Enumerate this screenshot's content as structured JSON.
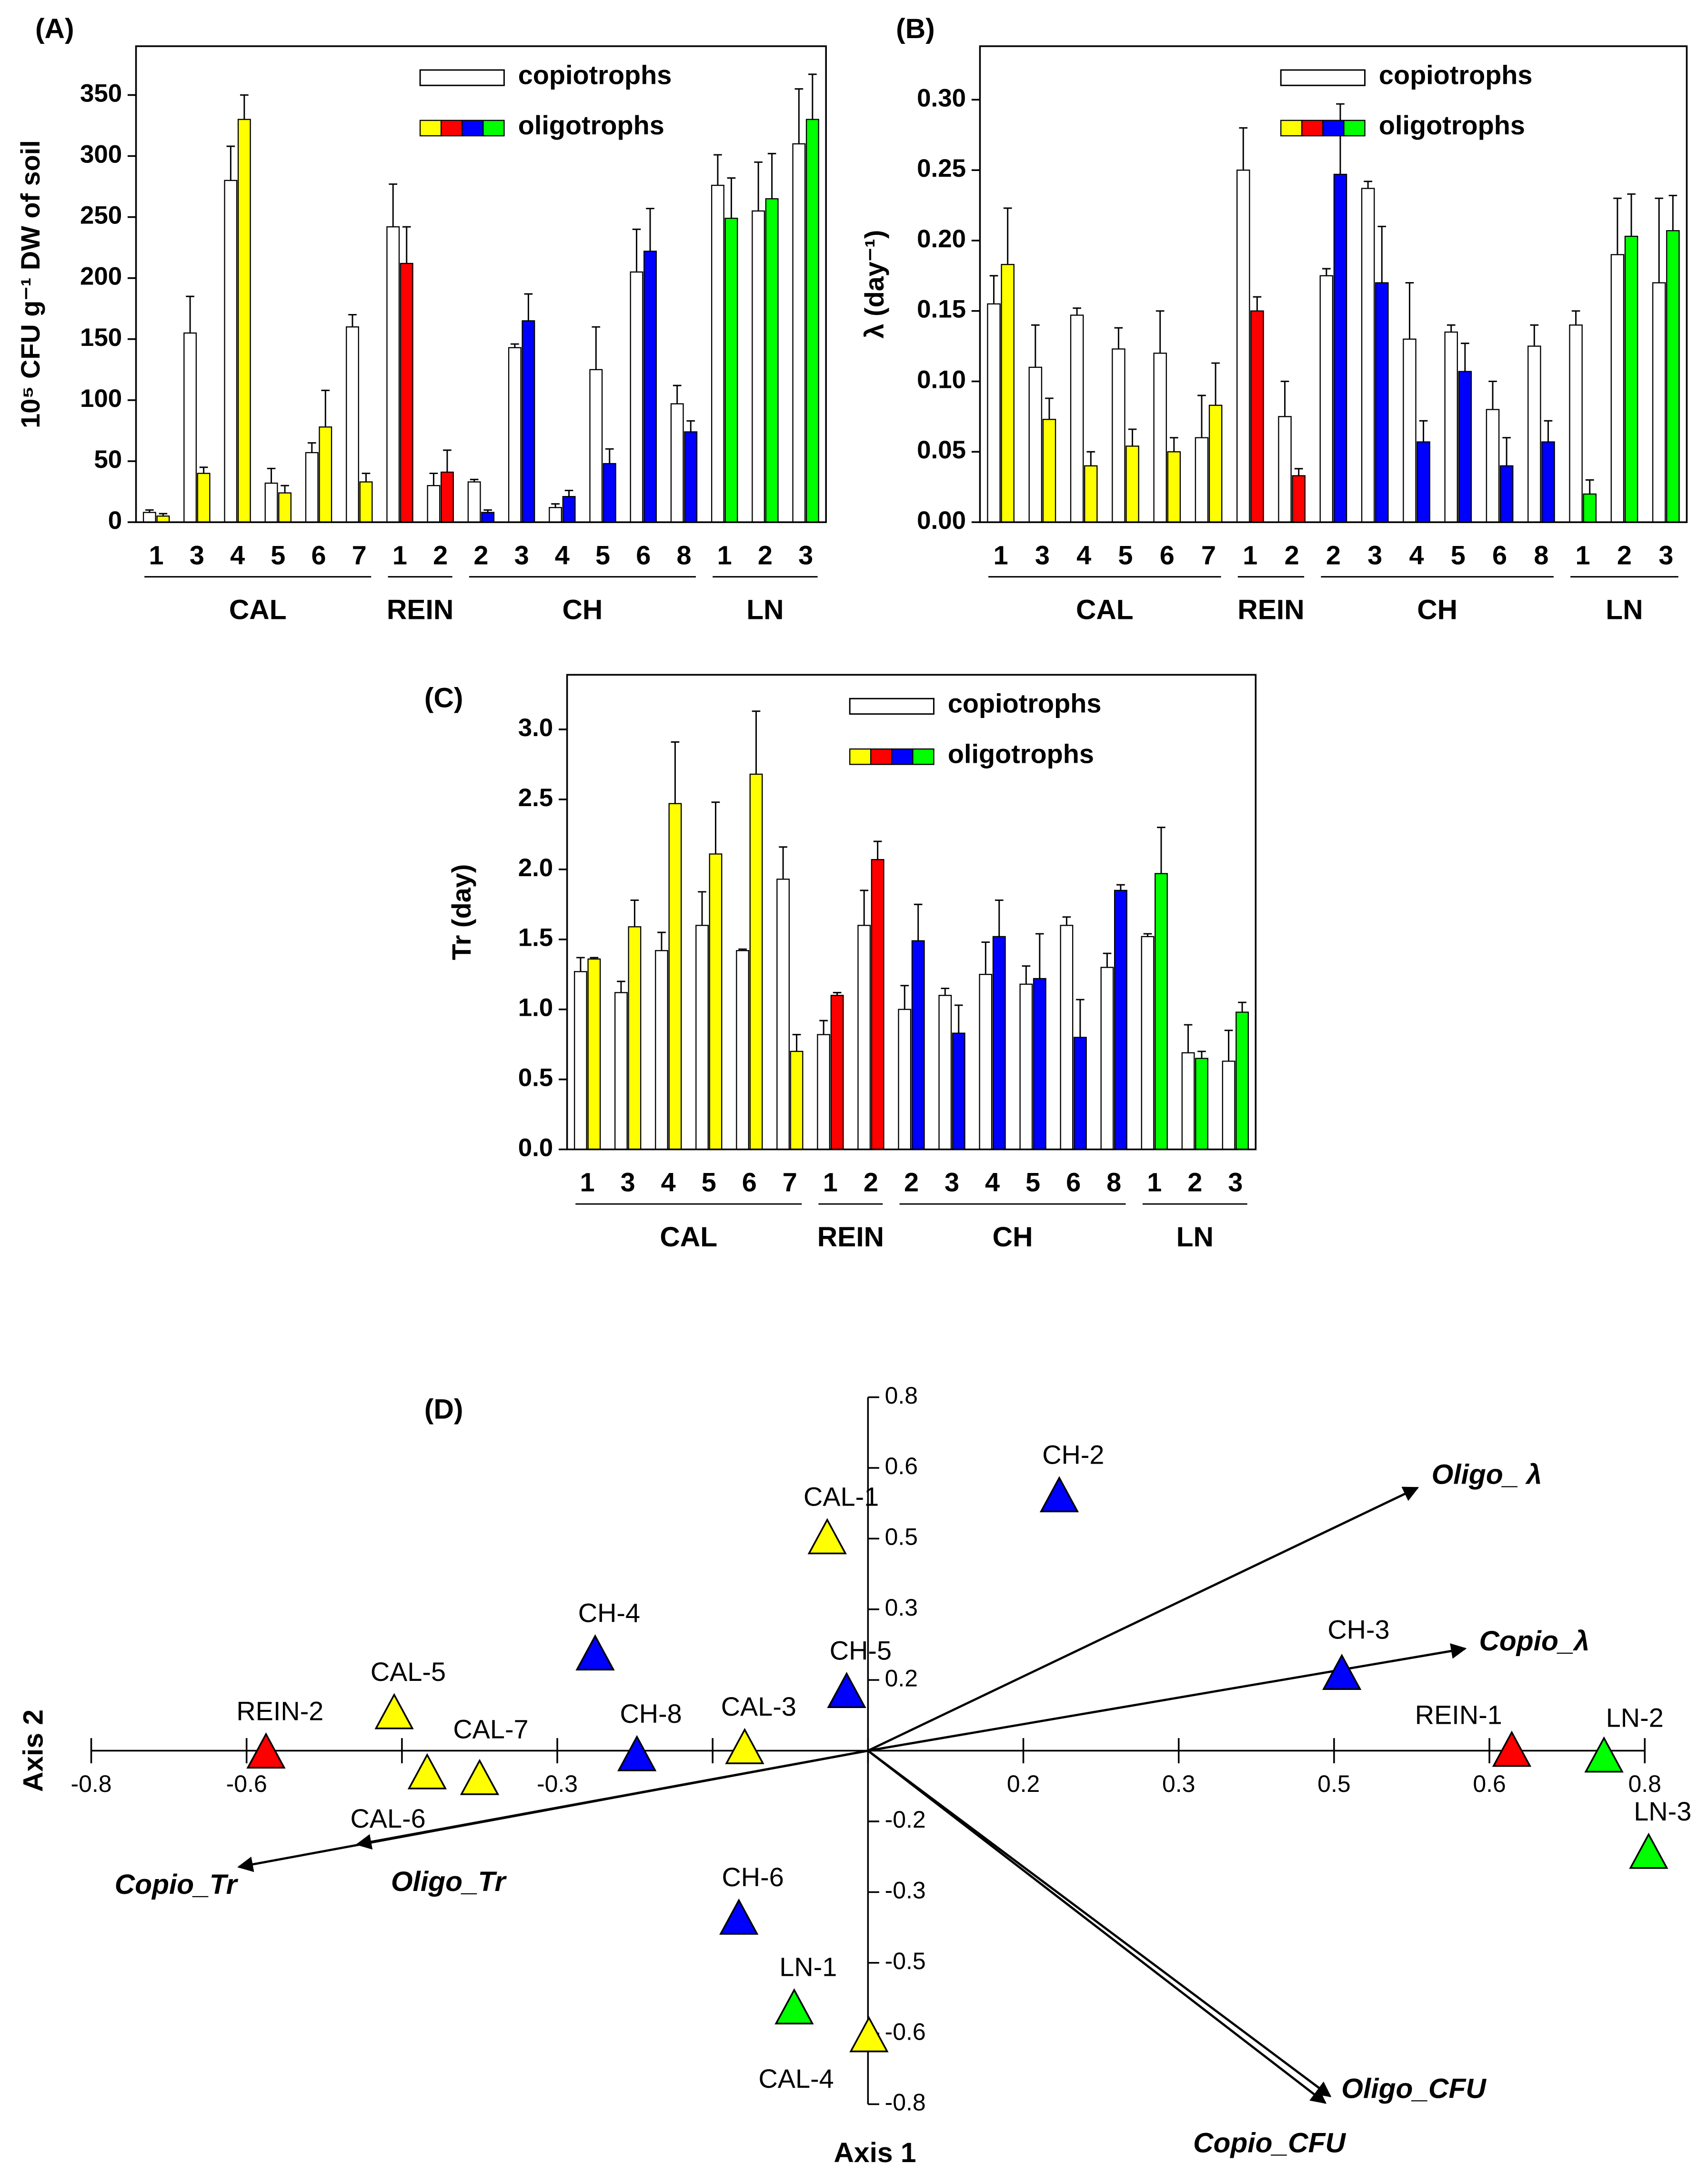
{
  "chart_data": [
    {
      "type": "bar",
      "title": "(A)",
      "ylabel": "10⁵ CFU g⁻¹ DW of soil",
      "ylim": [
        0,
        390
      ],
      "yticks": [
        0,
        50,
        100,
        150,
        200,
        250,
        300,
        350
      ],
      "legend": "upper right",
      "groups": [
        {
          "name": "CAL",
          "color": "#ffff00",
          "categories": [
            "1",
            "3",
            "4",
            "5",
            "6",
            "7"
          ]
        },
        {
          "name": "REIN",
          "color": "#ff0000",
          "categories": [
            "1",
            "2"
          ]
        },
        {
          "name": "CH",
          "color": "#0000ff",
          "categories": [
            "2",
            "3",
            "4",
            "5",
            "6",
            "8"
          ]
        },
        {
          "name": "LN",
          "color": "#00ff00",
          "categories": [
            "1",
            "2",
            "3"
          ]
        }
      ],
      "series": [
        {
          "name": "copiotrophs",
          "color": "#ffffff",
          "values": [
            8,
            155,
            280,
            32,
            57,
            160,
            242,
            30,
            33,
            143,
            12,
            125,
            205,
            97,
            276,
            255,
            310
          ],
          "errors": [
            2,
            30,
            28,
            12,
            8,
            10,
            35,
            10,
            2,
            3,
            3,
            35,
            35,
            15,
            25,
            40,
            45
          ]
        },
        {
          "name": "oligotrophs",
          "values": [
            5,
            40,
            330,
            24,
            78,
            33,
            212,
            41,
            8,
            165,
            21,
            48,
            222,
            74,
            249,
            265,
            330
          ],
          "errors": [
            2,
            5,
            20,
            6,
            30,
            7,
            30,
            18,
            2,
            22,
            5,
            12,
            35,
            9,
            33,
            37,
            37
          ]
        }
      ]
    },
    {
      "type": "bar",
      "title": "(B)",
      "ylabel": "λ (day⁻¹)",
      "ylim": [
        0,
        0.338
      ],
      "yticks": [
        {
          "value": 0,
          "label": "0.00"
        },
        {
          "value": 0.05,
          "label": "0.05"
        },
        {
          "value": 0.1,
          "label": "0.10"
        },
        {
          "value": 0.15,
          "label": "0.15"
        },
        {
          "value": 0.2,
          "label": "0.20"
        },
        {
          "value": 0.25,
          "label": "0.25"
        },
        {
          "value": 0.3,
          "label": "0.30"
        }
      ],
      "legend": "upper right",
      "groups": [
        {
          "name": "CAL",
          "color": "#ffff00",
          "categories": [
            "1",
            "3",
            "4",
            "5",
            "6",
            "7"
          ]
        },
        {
          "name": "REIN",
          "color": "#ff0000",
          "categories": [
            "1",
            "2"
          ]
        },
        {
          "name": "CH",
          "color": "#0000ff",
          "categories": [
            "2",
            "3",
            "4",
            "5",
            "6",
            "8"
          ]
        },
        {
          "name": "LN",
          "color": "#00ff00",
          "categories": [
            "1",
            "2",
            "3"
          ]
        }
      ],
      "series": [
        {
          "name": "copiotrophs",
          "color": "#ffffff",
          "values": [
            0.155,
            0.11,
            0.147,
            0.123,
            0.12,
            0.06,
            0.25,
            0.075,
            0.175,
            0.237,
            0.13,
            0.135,
            0.08,
            0.125,
            0.14,
            0.19,
            0.17
          ],
          "errors": [
            0.02,
            0.03,
            0.005,
            0.015,
            0.03,
            0.03,
            0.03,
            0.025,
            0.005,
            0.005,
            0.04,
            0.005,
            0.02,
            0.015,
            0.01,
            0.04,
            0.06
          ]
        },
        {
          "name": "oligotrophs",
          "values": [
            0.183,
            0.073,
            0.04,
            0.054,
            0.05,
            0.083,
            0.15,
            0.033,
            0.247,
            0.17,
            0.057,
            0.107,
            0.04,
            0.057,
            0.02,
            0.203,
            0.207
          ],
          "errors": [
            0.04,
            0.015,
            0.01,
            0.012,
            0.01,
            0.03,
            0.01,
            0.005,
            0.05,
            0.04,
            0.015,
            0.02,
            0.02,
            0.015,
            0.01,
            0.03,
            0.025
          ]
        }
      ]
    },
    {
      "type": "bar",
      "title": "(C)",
      "ylabel": "Tr (day)",
      "ylim": [
        0,
        3.39
      ],
      "yticks": [
        {
          "value": 0,
          "label": "0.0"
        },
        0.5,
        {
          "value": 1,
          "label": "1.0"
        },
        1.5,
        {
          "value": 2,
          "label": "2.0"
        },
        2.5,
        {
          "value": 3,
          "label": "3.0"
        }
      ],
      "legend": "upper right",
      "groups": [
        {
          "name": "CAL",
          "color": "#ffff00",
          "categories": [
            "1",
            "3",
            "4",
            "5",
            "6",
            "7"
          ]
        },
        {
          "name": "REIN",
          "color": "#ff0000",
          "categories": [
            "1",
            "2"
          ]
        },
        {
          "name": "CH",
          "color": "#0000ff",
          "categories": [
            "2",
            "3",
            "4",
            "5",
            "6",
            "8"
          ]
        },
        {
          "name": "LN",
          "color": "#00ff00",
          "categories": [
            "1",
            "2",
            "3"
          ]
        }
      ],
      "series": [
        {
          "name": "copiotrophs",
          "color": "#ffffff",
          "values": [
            1.27,
            1.12,
            1.42,
            1.6,
            1.42,
            1.93,
            0.82,
            1.6,
            1.0,
            1.1,
            1.25,
            1.18,
            1.6,
            1.3,
            1.52,
            0.69,
            0.63
          ],
          "errors": [
            0.1,
            0.08,
            0.13,
            0.24,
            0.01,
            0.23,
            0.1,
            0.25,
            0.17,
            0.05,
            0.23,
            0.13,
            0.06,
            0.1,
            0.02,
            0.2,
            0.22
          ]
        },
        {
          "name": "oligotrophs",
          "values": [
            1.36,
            1.59,
            2.47,
            2.11,
            2.68,
            0.7,
            1.1,
            2.07,
            1.49,
            0.83,
            1.52,
            1.22,
            0.8,
            1.85,
            1.97,
            0.65,
            0.98
          ],
          "errors": [
            0.01,
            0.19,
            0.44,
            0.37,
            0.45,
            0.12,
            0.02,
            0.13,
            0.26,
            0.2,
            0.26,
            0.32,
            0.27,
            0.04,
            0.33,
            0.05,
            0.07
          ]
        }
      ]
    },
    {
      "type": "biplot",
      "title": "(D)",
      "xlabel": "Axis 1",
      "ylabel": "Axis 2",
      "xlim": [
        -0.8,
        0.8
      ],
      "ylim": [
        -0.8,
        0.8
      ],
      "xticks": [
        {
          "value": -0.8,
          "label": "-0.8"
        },
        {
          "value": -0.64,
          "label": "-0.6"
        },
        {
          "value": -0.48,
          "label": null
        },
        {
          "value": -0.32,
          "label": "-0.3"
        },
        {
          "value": -0.16,
          "label": null
        },
        {
          "value": 0,
          "label": null
        },
        {
          "value": 0.16,
          "label": "0.2"
        },
        {
          "value": 0.32,
          "label": "0.3"
        },
        {
          "value": 0.48,
          "label": "0.5"
        },
        {
          "value": 0.64,
          "label": "0.6"
        },
        {
          "value": 0.8,
          "label": "0.8"
        }
      ],
      "yticks": [
        {
          "value": 0.8,
          "label": "0.8"
        },
        {
          "value": 0.64,
          "label": "0.6"
        },
        {
          "value": 0.48,
          "label": "0.5"
        },
        {
          "value": 0.32,
          "label": "0.3"
        },
        {
          "value": 0.16,
          "label": "0.2"
        },
        {
          "value": -0.16,
          "label": "-0.2"
        },
        {
          "value": -0.32,
          "label": "-0.3"
        },
        {
          "value": -0.48,
          "label": "-0.5"
        },
        {
          "value": -0.64,
          "label": "-0.6"
        },
        {
          "value": -0.8,
          "label": "-0.8"
        }
      ],
      "points": [
        {
          "label": "CH-2",
          "color": "#0000ff",
          "x": 0.197,
          "y": 0.57
        },
        {
          "label": "CAL-1",
          "color": "#ffff00",
          "x": -0.042,
          "y": 0.475
        },
        {
          "label": "CH-4",
          "color": "#0000ff",
          "x": -0.281,
          "y": 0.212
        },
        {
          "label": "CH-5",
          "color": "#0000ff",
          "x": -0.022,
          "y": 0.127
        },
        {
          "label": "CAL-5",
          "color": "#ffff00",
          "x": -0.488,
          "y": 0.079
        },
        {
          "label": "REIN-2",
          "color": "#ff0000",
          "x": -0.62,
          "y": -0.01
        },
        {
          "label": "CAL-6",
          "color": "#ffff00",
          "x": -0.454,
          "y": -0.057
        },
        {
          "label": "CAL-7",
          "color": "#ffff00",
          "x": -0.4,
          "y": -0.07
        },
        {
          "label": "CH-8",
          "color": "#0000ff",
          "x": -0.238,
          "y": -0.016
        },
        {
          "label": "CAL-3",
          "color": "#ffff00",
          "x": -0.127,
          "y": 0
        },
        {
          "label": "CH-3",
          "color": "#0000ff",
          "x": 0.488,
          "y": 0.168
        },
        {
          "label": "REIN-1",
          "color": "#ff0000",
          "x": 0.663,
          "y": -0.006
        },
        {
          "label": "LN-2",
          "color": "#00ff00",
          "x": 0.758,
          "y": -0.019
        },
        {
          "label": "LN-3",
          "color": "#00ff00",
          "x": 0.804,
          "y": -0.237
        },
        {
          "label": "CH-6",
          "color": "#0000ff",
          "x": -0.133,
          "y": -0.386
        },
        {
          "label": "LN-1",
          "color": "#00ff00",
          "x": -0.076,
          "y": -0.589
        },
        {
          "label": "CAL-4",
          "color": "#ffff00",
          "x": 0.001,
          "y": -0.652
        }
      ],
      "vectors": [
        {
          "label": "Oligo_ λ",
          "x": 0.566,
          "y": 0.595
        },
        {
          "label": "Copio_λ",
          "x": 0.615,
          "y": 0.231
        },
        {
          "label": "Oligo_CFU",
          "x": 0.476,
          "y": -0.782
        },
        {
          "label": "Copio_CFU",
          "x": 0.471,
          "y": -0.797
        },
        {
          "label": "Copio_Tr",
          "x": -0.648,
          "y": -0.263
        },
        {
          "label": "Oligo_Tr",
          "x": -0.526,
          "y": -0.212
        }
      ]
    }
  ]
}
